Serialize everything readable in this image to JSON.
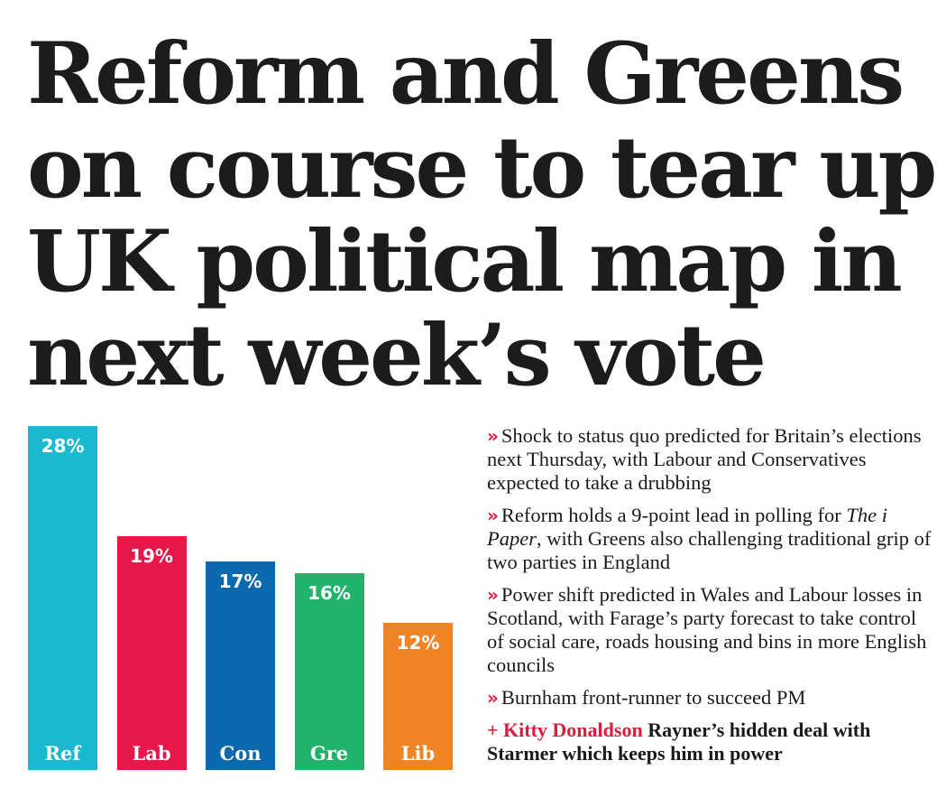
{
  "headline": {
    "lines": [
      "Reform and Greens",
      "on course to tear up",
      "UK political map in",
      "next week’s vote"
    ]
  },
  "chart_data": {
    "type": "bar",
    "categories": [
      "Ref",
      "Lab",
      "Con",
      "Gre",
      "Lib"
    ],
    "values": [
      28,
      19,
      17,
      16,
      12
    ],
    "value_labels": [
      "28%",
      "19%",
      "17%",
      "16%",
      "12%"
    ],
    "colors": [
      "#1bb9cf",
      "#e8174a",
      "#0a6aad",
      "#22b36b",
      "#f08323"
    ],
    "ylim": [
      0,
      28
    ]
  },
  "bullets": {
    "marker": "»",
    "b1": "Shock to status quo predicted for Britain’s elections next Thursday, with Labour and Conservatives expected to take a drubbing",
    "b2_pre": "Reform holds a 9-point lead in polling for",
    "b2_ital": "The i Paper",
    "b2_post": ", with Greens also challenging traditional grip of two parties in England",
    "b3": "Power shift predicted in Wales and Labour losses in Scotland, with Farage’s party forecast to take control of social care, roads housing and bins in more English councils",
    "b4": "Burnham front-runner to succeed PM"
  },
  "teaser": {
    "author": "+ Kitty Donaldson",
    "text": "Rayner’s hidden deal with Starmer which keeps him in power"
  }
}
